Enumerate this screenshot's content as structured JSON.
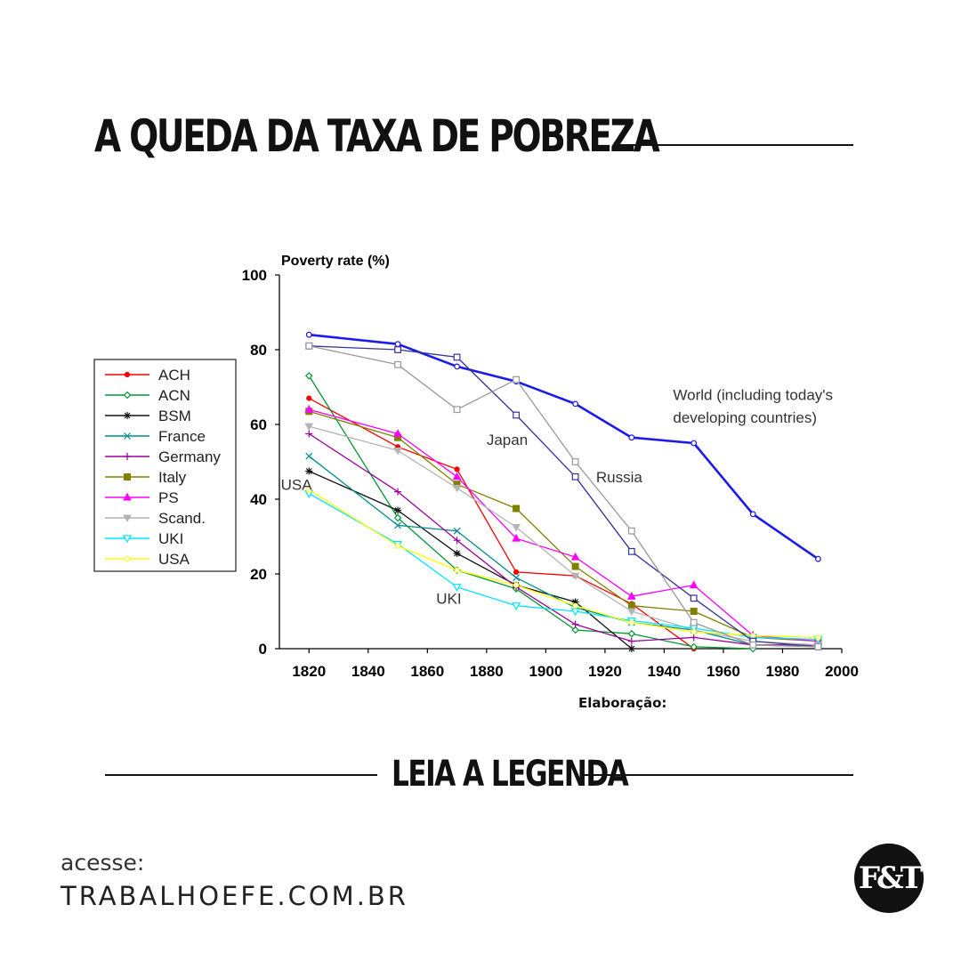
{
  "header": {
    "title": "A QUEDA DA TAXA DE POBREZA"
  },
  "credit_label": "Elaboração:",
  "cta": {
    "read_label": "LEIA A LEGENDA"
  },
  "access": {
    "label": "acesse:",
    "url": "TRABALHOEFE.COM.BR"
  },
  "logo": {
    "text": "F&T"
  },
  "chart_data": {
    "type": "line",
    "title": "Poverty rate (%)",
    "xlabel": "",
    "ylabel": "Poverty rate (%)",
    "xlim": [
      1810,
      2000
    ],
    "ylim": [
      0,
      100
    ],
    "x_ticks": [
      1820,
      1840,
      1860,
      1880,
      1900,
      1920,
      1940,
      1960,
      1980,
      2000
    ],
    "y_ticks": [
      0,
      20,
      40,
      60,
      80,
      100
    ],
    "legend_position": "left",
    "series": [
      {
        "name": "ACH",
        "color": "#ff0000",
        "marker": "dot",
        "legend": true,
        "points": [
          [
            1820,
            67
          ],
          [
            1850,
            54
          ],
          [
            1870,
            48
          ],
          [
            1890,
            20.5
          ],
          [
            1910,
            19.5
          ],
          [
            1929,
            12
          ],
          [
            1950,
            0
          ]
        ]
      },
      {
        "name": "ACN",
        "color": "#009933",
        "marker": "diamond",
        "legend": true,
        "points": [
          [
            1820,
            73
          ],
          [
            1850,
            35
          ],
          [
            1870,
            21
          ],
          [
            1890,
            16
          ],
          [
            1910,
            5
          ],
          [
            1929,
            4
          ],
          [
            1950,
            0.5
          ],
          [
            1970,
            0
          ]
        ]
      },
      {
        "name": "BSM",
        "color": "#111111",
        "marker": "star",
        "legend": true,
        "points": [
          [
            1820,
            47.5
          ],
          [
            1850,
            37
          ],
          [
            1870,
            25.5
          ],
          [
            1890,
            17
          ],
          [
            1910,
            12.5
          ],
          [
            1929,
            0
          ]
        ]
      },
      {
        "name": "France",
        "color": "#008b8b",
        "marker": "x",
        "legend": true,
        "points": [
          [
            1820,
            51.5
          ],
          [
            1850,
            33
          ],
          [
            1870,
            31.5
          ],
          [
            1890,
            19
          ],
          [
            1910,
            11
          ],
          [
            1929,
            7
          ],
          [
            1950,
            5
          ],
          [
            1970,
            1
          ],
          [
            1992,
            0.5
          ]
        ]
      },
      {
        "name": "Germany",
        "color": "#990099",
        "marker": "plus",
        "legend": true,
        "points": [
          [
            1820,
            57.5
          ],
          [
            1850,
            42
          ],
          [
            1870,
            29
          ],
          [
            1890,
            16.5
          ],
          [
            1910,
            6.5
          ],
          [
            1929,
            2
          ],
          [
            1950,
            3
          ],
          [
            1970,
            1
          ],
          [
            1992,
            1
          ]
        ]
      },
      {
        "name": "Italy",
        "color": "#808000",
        "marker": "square-filled",
        "legend": true,
        "points": [
          [
            1820,
            63.5
          ],
          [
            1850,
            56.5
          ],
          [
            1870,
            44
          ],
          [
            1890,
            37.5
          ],
          [
            1910,
            22
          ],
          [
            1929,
            11.5
          ],
          [
            1950,
            10
          ],
          [
            1970,
            3
          ],
          [
            1992,
            2
          ]
        ]
      },
      {
        "name": "PS",
        "color": "#ff00ff",
        "marker": "triangle",
        "legend": true,
        "points": [
          [
            1820,
            64
          ],
          [
            1850,
            57.5
          ],
          [
            1870,
            46
          ],
          [
            1890,
            29.5
          ],
          [
            1910,
            24.5
          ],
          [
            1929,
            14
          ],
          [
            1950,
            17
          ],
          [
            1970,
            3.5
          ],
          [
            1992,
            2
          ]
        ]
      },
      {
        "name": "Scand.",
        "color": "#b4b4b4",
        "marker": "triangle-down-filled",
        "legend": true,
        "points": [
          [
            1820,
            59.5
          ],
          [
            1850,
            53
          ],
          [
            1870,
            43
          ],
          [
            1890,
            32.5
          ],
          [
            1910,
            19.5
          ],
          [
            1929,
            10
          ],
          [
            1950,
            5
          ],
          [
            1970,
            2
          ],
          [
            1992,
            1
          ]
        ]
      },
      {
        "name": "UKI",
        "color": "#00e5ff",
        "marker": "triangle-down",
        "legend": true,
        "points": [
          [
            1820,
            41.5
          ],
          [
            1850,
            28
          ],
          [
            1870,
            16.5
          ],
          [
            1890,
            11.5
          ],
          [
            1910,
            10
          ],
          [
            1929,
            7.5
          ],
          [
            1950,
            5.5
          ],
          [
            1970,
            3
          ],
          [
            1992,
            2.5
          ]
        ]
      },
      {
        "name": "USA",
        "color": "#ffff00",
        "marker": "dot-open",
        "legend": true,
        "points": [
          [
            1820,
            42.5
          ],
          [
            1850,
            27.5
          ],
          [
            1870,
            21
          ],
          [
            1890,
            17
          ],
          [
            1910,
            11.5
          ],
          [
            1929,
            7
          ],
          [
            1950,
            4.5
          ],
          [
            1970,
            3.5
          ],
          [
            1992,
            3
          ]
        ]
      },
      {
        "name": "World (including today's developing countries)",
        "color": "#1a1aee",
        "marker": "circle-open",
        "legend": false,
        "width": 2.6,
        "points": [
          [
            1820,
            84
          ],
          [
            1850,
            81.5
          ],
          [
            1870,
            75.5
          ],
          [
            1890,
            71.5
          ],
          [
            1910,
            65.5
          ],
          [
            1929,
            56.5
          ],
          [
            1950,
            55
          ],
          [
            1970,
            36
          ],
          [
            1992,
            24
          ]
        ]
      },
      {
        "name": "Japan",
        "color": "#333399",
        "marker": "square-open",
        "legend": false,
        "points": [
          [
            1820,
            81
          ],
          [
            1850,
            80
          ],
          [
            1870,
            78
          ],
          [
            1890,
            62.5
          ],
          [
            1910,
            46
          ],
          [
            1929,
            26
          ],
          [
            1950,
            13.5
          ],
          [
            1970,
            2
          ],
          [
            1992,
            0.5
          ]
        ]
      },
      {
        "name": "Russia",
        "color": "#999999",
        "marker": "square-open",
        "legend": false,
        "points": [
          [
            1820,
            81
          ],
          [
            1850,
            76
          ],
          [
            1870,
            64
          ],
          [
            1890,
            72
          ],
          [
            1910,
            50
          ],
          [
            1929,
            31.5
          ],
          [
            1950,
            7
          ],
          [
            1970,
            1
          ],
          [
            1992,
            0.5
          ]
        ]
      }
    ],
    "annotations": [
      {
        "text": "World (including today's",
        "x": 1943,
        "y": 66.5
      },
      {
        "text": "developing countries)",
        "x": 1943,
        "y": 60.5
      },
      {
        "text": "Japan",
        "x": 1880,
        "y": 54.5
      },
      {
        "text": "Russia",
        "x": 1917,
        "y": 44.5
      },
      {
        "text": "USA",
        "x": 1810.5,
        "y": 42.5
      },
      {
        "text": "UKI",
        "x": 1863,
        "y": 12
      }
    ]
  }
}
